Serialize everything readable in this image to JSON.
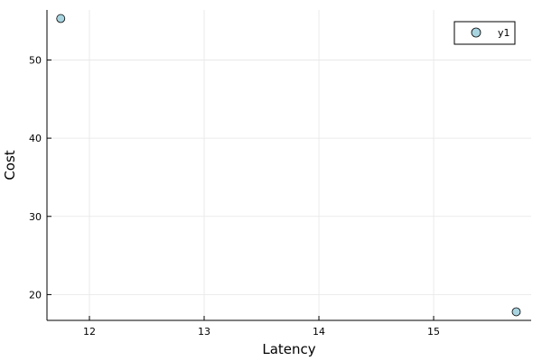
{
  "chart_data": {
    "type": "scatter",
    "title": "",
    "xlabel": "Latency",
    "ylabel": "Cost",
    "xlim": [
      11.63,
      15.85
    ],
    "ylim": [
      16.7,
      56.4
    ],
    "x_ticks": [
      12,
      13,
      14,
      15
    ],
    "y_ticks": [
      20,
      30,
      40,
      50
    ],
    "grid": true,
    "legend": {
      "position": "top-right",
      "entries": [
        "y1"
      ]
    },
    "series": [
      {
        "name": "y1",
        "color": "#a8d4e0",
        "points": [
          {
            "x": 11.75,
            "y": 55.3
          },
          {
            "x": 15.72,
            "y": 17.8
          }
        ]
      }
    ]
  }
}
